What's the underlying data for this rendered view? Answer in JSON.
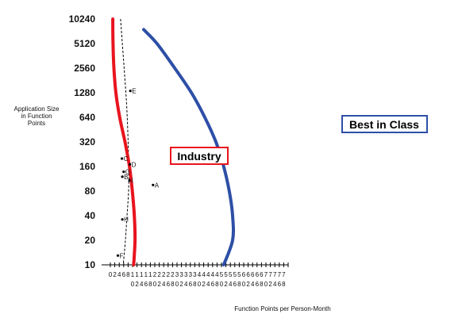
{
  "chart_data": {
    "type": "line",
    "xlabel": "Function Points per Person-Month",
    "ylabel_lines": [
      "Application Size",
      "in Function",
      "Points"
    ],
    "y_scale": "log2",
    "ylim": [
      10,
      10240
    ],
    "y_ticks": [
      10240,
      5120,
      2560,
      1280,
      640,
      320,
      160,
      80,
      40,
      20,
      10
    ],
    "xlim": [
      0,
      80
    ],
    "x_ticks": [
      {
        "x": 0,
        "top": "0",
        "bottom": ""
      },
      {
        "x": 2,
        "top": "2",
        "bottom": ""
      },
      {
        "x": 4,
        "top": "4",
        "bottom": ""
      },
      {
        "x": 6,
        "top": "6",
        "bottom": ""
      },
      {
        "x": 8,
        "top": "8",
        "bottom": ""
      },
      {
        "x": 10,
        "top": "1",
        "bottom": "0"
      },
      {
        "x": 12,
        "top": "1",
        "bottom": "2"
      },
      {
        "x": 14,
        "top": "1",
        "bottom": "4"
      },
      {
        "x": 16,
        "top": "1",
        "bottom": "6"
      },
      {
        "x": 18,
        "top": "1",
        "bottom": "8"
      },
      {
        "x": 20,
        "top": "2",
        "bottom": "0"
      },
      {
        "x": 22,
        "top": "2",
        "bottom": "2"
      },
      {
        "x": 24,
        "top": "2",
        "bottom": "4"
      },
      {
        "x": 26,
        "top": "2",
        "bottom": "6"
      },
      {
        "x": 28,
        "top": "2",
        "bottom": "8"
      },
      {
        "x": 30,
        "top": "3",
        "bottom": "0"
      },
      {
        "x": 32,
        "top": "3",
        "bottom": "2"
      },
      {
        "x": 34,
        "top": "3",
        "bottom": "4"
      },
      {
        "x": 36,
        "top": "3",
        "bottom": "6"
      },
      {
        "x": 38,
        "top": "3",
        "bottom": "8"
      },
      {
        "x": 40,
        "top": "4",
        "bottom": "0"
      },
      {
        "x": 42,
        "top": "4",
        "bottom": "2"
      },
      {
        "x": 44,
        "top": "4",
        "bottom": "4"
      },
      {
        "x": 46,
        "top": "4",
        "bottom": "6"
      },
      {
        "x": 48,
        "top": "4",
        "bottom": "8"
      },
      {
        "x": 50,
        "top": "5",
        "bottom": "0"
      },
      {
        "x": 52,
        "top": "5",
        "bottom": "2"
      },
      {
        "x": 54,
        "top": "5",
        "bottom": "4"
      },
      {
        "x": 56,
        "top": "5",
        "bottom": "6"
      },
      {
        "x": 58,
        "top": "5",
        "bottom": "8"
      },
      {
        "x": 60,
        "top": "6",
        "bottom": "0"
      },
      {
        "x": 62,
        "top": "6",
        "bottom": "2"
      },
      {
        "x": 64,
        "top": "6",
        "bottom": "4"
      },
      {
        "x": 66,
        "top": "6",
        "bottom": "6"
      },
      {
        "x": 68,
        "top": "6",
        "bottom": "8"
      },
      {
        "x": 70,
        "top": "7",
        "bottom": "0"
      },
      {
        "x": 72,
        "top": "7",
        "bottom": "2"
      },
      {
        "x": 74,
        "top": "7",
        "bottom": "4"
      },
      {
        "x": 76,
        "top": "7",
        "bottom": "6"
      },
      {
        "x": 78,
        "top": "7",
        "bottom": "8"
      }
    ],
    "series": [
      {
        "name": "Industry",
        "color": "#e8141e",
        "points": [
          [
            1.1,
            10240
          ],
          [
            1.2,
            5120
          ],
          [
            1.6,
            2560
          ],
          [
            2.5,
            1280
          ],
          [
            4.2,
            640
          ],
          [
            6.6,
            320
          ],
          [
            8.6,
            160
          ],
          [
            9.9,
            80
          ],
          [
            10.8,
            40
          ],
          [
            11.1,
            20
          ],
          [
            10.5,
            10
          ]
        ]
      },
      {
        "name": "Best in Class",
        "color": "#2d4fa6",
        "points": [
          [
            15.0,
            7600
          ],
          [
            21.0,
            5120
          ],
          [
            29.0,
            2560
          ],
          [
            36.5,
            1280
          ],
          [
            42.5,
            640
          ],
          [
            47.5,
            320
          ],
          [
            51.0,
            160
          ],
          [
            53.5,
            80
          ],
          [
            55.0,
            40
          ],
          [
            55.0,
            20
          ],
          [
            51.0,
            10
          ]
        ]
      }
    ],
    "dashed_curve": {
      "color": "#000000",
      "points": [
        [
          4.6,
          10240
        ],
        [
          5.4,
          5120
        ],
        [
          6.2,
          2560
        ],
        [
          7.0,
          1280
        ],
        [
          7.6,
          640
        ],
        [
          8.0,
          320
        ],
        [
          8.3,
          160
        ],
        [
          8.2,
          80
        ],
        [
          7.5,
          40
        ],
        [
          6.8,
          20
        ],
        [
          5.8,
          10
        ]
      ]
    },
    "scatter_points": [
      {
        "label": "A",
        "x": 19.2,
        "y": 95
      },
      {
        "label": "B",
        "x": 5.4,
        "y": 120
      },
      {
        "label": "C",
        "x": 5.2,
        "y": 200
      },
      {
        "label": "D",
        "x": 8.8,
        "y": 170
      },
      {
        "label": "E",
        "x": 9.0,
        "y": 1350
      },
      {
        "label": "F",
        "x": 3.4,
        "y": 13
      },
      {
        "label": "G",
        "x": 6.0,
        "y": 138
      },
      {
        "label": "H",
        "x": 5.4,
        "y": 36
      },
      {
        "label": "I",
        "x": 8.6,
        "y": 108
      }
    ],
    "series_labels": [
      {
        "text": "Industry",
        "border": "#e8141e"
      },
      {
        "text": "Best in Class",
        "border": "#2d4fa6"
      }
    ]
  }
}
